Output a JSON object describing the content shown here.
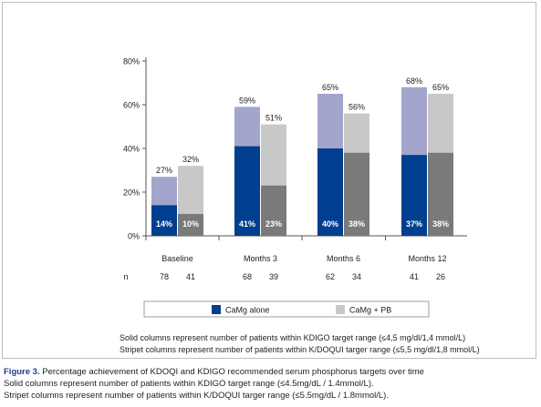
{
  "chart_data": {
    "type": "bar",
    "categories": [
      "Baseline",
      "Months 3",
      "Months 6",
      "Months 12"
    ],
    "ylim": [
      0,
      80
    ],
    "yticks": [
      "0%",
      "20%",
      "40%",
      "60%",
      "80%"
    ],
    "series": [
      {
        "name": "CaMg alone",
        "light_color": "#a3a5cc",
        "dark_color": "#003f8f",
        "kdigo": [
          14,
          41,
          40,
          37
        ],
        "kdoqi": [
          27,
          59,
          65,
          68
        ],
        "kdigo_labels": [
          "14%",
          "41%",
          "40%",
          "37%"
        ],
        "kdoqi_labels": [
          "27%",
          "59%",
          "65%",
          "68%"
        ],
        "n": [
          "78",
          "68",
          "62",
          "41"
        ]
      },
      {
        "name": "CaMg + PB",
        "light_color": "#c8c8c8",
        "dark_color": "#7a7a7a",
        "kdigo": [
          10,
          23,
          38,
          38
        ],
        "kdoqi": [
          32,
          51,
          56,
          65
        ],
        "kdigo_labels": [
          "10%",
          "23%",
          "38%",
          "38%"
        ],
        "kdoqi_labels": [
          "32%",
          "51%",
          "56%",
          "65%"
        ],
        "n": [
          "41",
          "39",
          "34",
          "26"
        ]
      }
    ],
    "n_label": "n",
    "legend": [
      "CaMg alone",
      "CaMg + PB"
    ],
    "legend_placement": "bottom",
    "grid": false
  },
  "notes": {
    "line1": "Solid columns represent number of patients within KDIGO target range (≤4,5 mg/dl/1,4 mmol/L)",
    "line2": "Stripet columns represent number of patients within K/DOQUI targer range (≤5,5 mg/dl/1,8 mmol/L)"
  },
  "caption": {
    "label": "Figure 3.",
    "title": " Percentage achievement of KDOQI and KDIGO recommended serum phosphorus targets over time",
    "line2": "Solid columns represent number of patients within KDIGO target range (≤4.5mg/dL / 1.4mmol/L).",
    "line3": "Stripet columns represent number of patients within K/DOQUI targer range (≤5.5mg/dL / 1.8mmol/L)."
  }
}
